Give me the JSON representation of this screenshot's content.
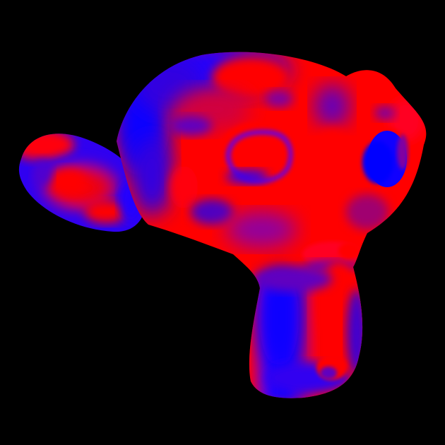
{
  "scene": {
    "subject": "monkey-head-mesh",
    "shading": "normal-map-red-blue",
    "colors": {
      "background": "#000000",
      "primary": "#ff0000",
      "secondary": "#0000ff",
      "blend": "#8000a0"
    }
  }
}
